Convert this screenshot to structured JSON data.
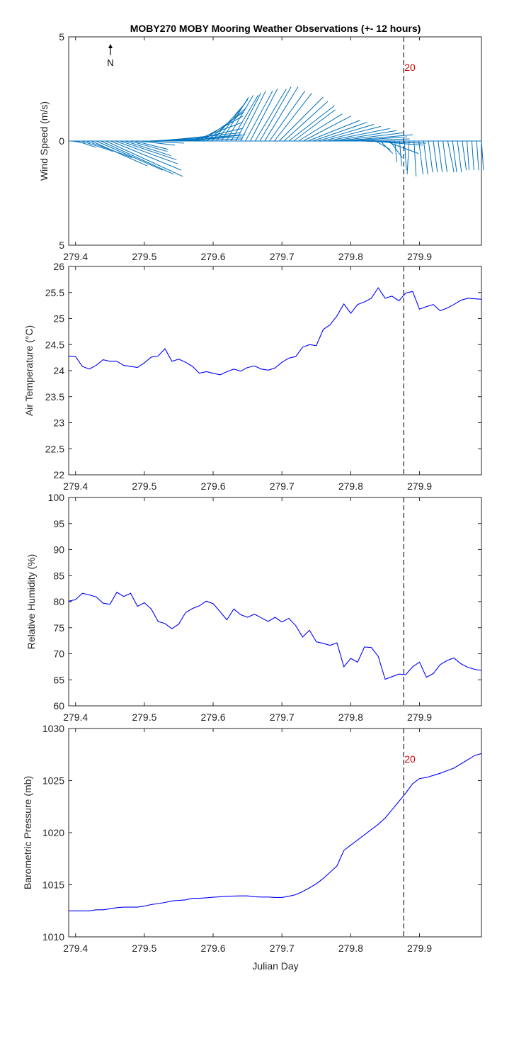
{
  "title": "MOBY270 MOBY Mooring Weather Observations (+- 12 hours)",
  "xlabel": "Julian Day",
  "north_label": "N",
  "marker": {
    "x": 279.877,
    "label": "20"
  },
  "colors": {
    "stick": "#0072bd",
    "line": "#0000ff",
    "marker_label": "#d40000"
  },
  "chart_data": [
    {
      "type": "line",
      "subtype": "wind-stick",
      "ylabel": "Wind Speed (m/s)",
      "xlim": [
        279.39,
        279.99
      ],
      "ylim": [
        -5,
        5
      ],
      "yticks": [
        -5,
        0,
        5
      ],
      "ytick_labels": [
        "5",
        "0",
        "5"
      ],
      "xticks": [
        279.4,
        279.5,
        279.6,
        279.7,
        279.8,
        279.9
      ],
      "show_marker_label": true,
      "series": [
        {
          "x": [
            279.395,
            279.402,
            279.409,
            279.416,
            279.423,
            279.43,
            279.437,
            279.444,
            279.451,
            279.458,
            279.465,
            279.472,
            279.479,
            279.486,
            279.493,
            279.5,
            279.507,
            279.514,
            279.521,
            279.528,
            279.535,
            279.542,
            279.549,
            279.556,
            279.563,
            279.57,
            279.577,
            279.584,
            279.591,
            279.598,
            279.605,
            279.612,
            279.619,
            279.626,
            279.633,
            279.64,
            279.647,
            279.654,
            279.661,
            279.668,
            279.675,
            279.682,
            279.689,
            279.696,
            279.703,
            279.71,
            279.717,
            279.724,
            279.731,
            279.738,
            279.745,
            279.752,
            279.759,
            279.766,
            279.773,
            279.78,
            279.787,
            279.794,
            279.801,
            279.808,
            279.815,
            279.822,
            279.829,
            279.836,
            279.843,
            279.85,
            279.857,
            279.864,
            279.871,
            279.878,
            279.885,
            279.892,
            279.899,
            279.906,
            279.913,
            279.92,
            279.927,
            279.934,
            279.941,
            279.948,
            279.955,
            279.962,
            279.969,
            279.976,
            279.983,
            279.99
          ],
          "u": [
            0.6,
            0.9,
            1.5,
            2.2,
            2.7,
            3.2,
            3.5,
            3.7,
            3.4,
            3.0,
            2.7,
            2.2,
            1.8,
            1.6,
            1.7,
            1.9,
            2.1,
            2.6,
            3.1,
            3.7,
            3.5,
            3.3,
            3.1,
            3.0,
            2.6,
            2.4,
            2.2,
            2.0,
            1.9,
            1.6,
            1.5,
            1.3,
            1.3,
            1.3,
            1.2,
            1.2,
            1.3,
            1.3,
            1.5,
            1.5,
            1.6,
            1.7,
            1.8,
            2.1,
            2.1,
            2.2,
            2.0,
            2.1,
            2.3,
            2.5,
            2.6,
            2.7,
            2.8,
            3.0,
            3.1,
            3.2,
            3.4,
            2.9,
            2.8,
            2.6,
            2.9,
            2.9,
            2.5,
            0.7,
            0.6,
            1.6,
            0.6,
            0.1,
            0.1,
            0.1,
            -0.1,
            0.1,
            0.2,
            0.2,
            0.2,
            0.2,
            0.2,
            0.2,
            0.3,
            0.2,
            0.2,
            0.2,
            0.1,
            0.1,
            0.1,
            0.1
          ],
          "v": [
            -0.1,
            -0.3,
            -0.5,
            -0.8,
            -1.2,
            -1.4,
            -1.6,
            -1.7,
            -1.4,
            -1.1,
            -0.9,
            -0.7,
            -0.5,
            -0.4,
            -0.2,
            -0.1,
            0.1,
            0.2,
            0.3,
            0.4,
            0.3,
            0.2,
            0.1,
            0.3,
            0.6,
            0.9,
            1.2,
            1.4,
            1.6,
            1.8,
            2.0,
            2.1,
            2.2,
            2.2,
            2.3,
            2.4,
            2.4,
            2.5,
            2.5,
            2.6,
            2.6,
            2.4,
            2.3,
            2.1,
            1.9,
            1.7,
            1.5,
            1.3,
            1.2,
            1.0,
            0.9,
            0.8,
            0.7,
            0.6,
            0.5,
            0.4,
            0.3,
            0.2,
            0.1,
            0.0,
            -0.1,
            -0.1,
            -0.2,
            -0.4,
            -0.6,
            -0.6,
            -0.8,
            -1.0,
            -1.2,
            -1.4,
            -1.6,
            -1.7,
            -1.6,
            -1.6,
            -1.5,
            -1.5,
            -1.5,
            -1.5,
            -1.5,
            -1.5,
            -1.5,
            -1.4,
            -1.4,
            -1.4,
            -1.4,
            -1.4
          ]
        }
      ]
    },
    {
      "type": "line",
      "ylabel": "Air Temperature (°C)",
      "xlim": [
        279.39,
        279.99
      ],
      "ylim": [
        22,
        26
      ],
      "yticks": [
        22,
        22.5,
        23,
        23.5,
        24,
        24.5,
        25,
        25.5,
        26
      ],
      "ytick_labels": [
        "22",
        "22.5",
        "23",
        "23.5",
        "24",
        "24.5",
        "25",
        "25.5",
        "26"
      ],
      "xticks": [
        279.4,
        279.5,
        279.6,
        279.7,
        279.8,
        279.9
      ],
      "show_marker_label": false,
      "series": [
        {
          "x": [
            279.39,
            279.4,
            279.41,
            279.42,
            279.43,
            279.44,
            279.45,
            279.46,
            279.47,
            279.48,
            279.49,
            279.5,
            279.51,
            279.52,
            279.53,
            279.54,
            279.55,
            279.56,
            279.57,
            279.58,
            279.59,
            279.6,
            279.61,
            279.62,
            279.63,
            279.64,
            279.65,
            279.66,
            279.67,
            279.68,
            279.69,
            279.7,
            279.71,
            279.72,
            279.73,
            279.74,
            279.75,
            279.76,
            279.77,
            279.78,
            279.79,
            279.8,
            279.81,
            279.82,
            279.83,
            279.84,
            279.85,
            279.86,
            279.87,
            279.88,
            279.89,
            279.9,
            279.91,
            279.92,
            279.93,
            279.94,
            279.95,
            279.96,
            279.97,
            279.98,
            279.99
          ],
          "y": [
            24.28,
            24.27,
            24.08,
            24.03,
            24.1,
            24.21,
            24.18,
            24.18,
            24.1,
            24.08,
            24.06,
            24.15,
            24.26,
            24.28,
            24.42,
            24.18,
            24.22,
            24.16,
            24.08,
            23.95,
            23.98,
            23.95,
            23.92,
            23.98,
            24.03,
            23.99,
            24.06,
            24.09,
            24.03,
            24.01,
            24.05,
            24.16,
            24.24,
            24.27,
            24.45,
            24.5,
            24.48,
            24.79,
            24.88,
            25.05,
            25.28,
            25.1,
            25.27,
            25.32,
            25.39,
            25.59,
            25.39,
            25.43,
            25.34,
            25.49,
            25.52,
            25.18,
            25.23,
            25.27,
            25.15,
            25.2,
            25.27,
            25.35,
            25.39,
            25.38,
            25.37
          ]
        }
      ]
    },
    {
      "type": "line",
      "ylabel": "Relative Humidity (%)",
      "xlim": [
        279.39,
        279.99
      ],
      "ylim": [
        60,
        100
      ],
      "yticks": [
        60,
        65,
        70,
        75,
        80,
        85,
        90,
        95,
        100
      ],
      "ytick_labels": [
        "60",
        "65",
        "70",
        "75",
        "80",
        "85",
        "90",
        "95",
        "100"
      ],
      "xticks": [
        279.4,
        279.5,
        279.6,
        279.7,
        279.8,
        279.9
      ],
      "show_marker_label": false,
      "series": [
        {
          "x": [
            279.39,
            279.4,
            279.41,
            279.42,
            279.43,
            279.44,
            279.45,
            279.46,
            279.47,
            279.48,
            279.49,
            279.5,
            279.51,
            279.52,
            279.53,
            279.54,
            279.55,
            279.56,
            279.57,
            279.58,
            279.59,
            279.6,
            279.61,
            279.62,
            279.63,
            279.64,
            279.65,
            279.66,
            279.67,
            279.68,
            279.69,
            279.7,
            279.71,
            279.72,
            279.73,
            279.74,
            279.75,
            279.76,
            279.77,
            279.78,
            279.79,
            279.8,
            279.81,
            279.82,
            279.83,
            279.84,
            279.85,
            279.86,
            279.87,
            279.88,
            279.89,
            279.9,
            279.91,
            279.92,
            279.93,
            279.94,
            279.95,
            279.96,
            279.97,
            279.98,
            279.99
          ],
          "y": [
            80.1,
            80.4,
            81.6,
            81.3,
            80.9,
            79.7,
            79.5,
            81.8,
            81.0,
            81.6,
            79.1,
            79.8,
            78.6,
            76.2,
            75.8,
            74.8,
            75.7,
            77.9,
            78.7,
            79.2,
            80.1,
            79.6,
            78.1,
            76.5,
            78.6,
            77.5,
            77.0,
            77.6,
            76.9,
            76.2,
            77.0,
            76.1,
            76.8,
            75.4,
            73.2,
            74.5,
            72.3,
            72.0,
            71.6,
            72.1,
            67.5,
            69.1,
            68.4,
            71.3,
            71.2,
            69.5,
            65.1,
            65.6,
            66.1,
            66.0,
            67.5,
            68.4,
            65.5,
            66.2,
            67.9,
            68.7,
            69.2,
            68.1,
            67.4,
            67.0,
            66.8
          ]
        }
      ]
    },
    {
      "type": "line",
      "ylabel": "Barometric Pressure (mb)",
      "xlim": [
        279.39,
        279.99
      ],
      "ylim": [
        1010,
        1030
      ],
      "yticks": [
        1010,
        1015,
        1020,
        1025,
        1030
      ],
      "ytick_labels": [
        "1010",
        "1015",
        "1020",
        "1025",
        "1030"
      ],
      "xticks": [
        279.4,
        279.5,
        279.6,
        279.7,
        279.8,
        279.9
      ],
      "show_marker_label": true,
      "series": [
        {
          "x": [
            279.39,
            279.4,
            279.41,
            279.42,
            279.43,
            279.44,
            279.45,
            279.46,
            279.47,
            279.48,
            279.49,
            279.5,
            279.51,
            279.52,
            279.53,
            279.54,
            279.55,
            279.56,
            279.57,
            279.58,
            279.59,
            279.6,
            279.61,
            279.62,
            279.63,
            279.64,
            279.65,
            279.66,
            279.67,
            279.68,
            279.69,
            279.7,
            279.71,
            279.72,
            279.73,
            279.74,
            279.75,
            279.76,
            279.77,
            279.78,
            279.79,
            279.8,
            279.81,
            279.82,
            279.83,
            279.84,
            279.85,
            279.86,
            279.87,
            279.88,
            279.89,
            279.9,
            279.91,
            279.92,
            279.93,
            279.94,
            279.95,
            279.96,
            279.97,
            279.98,
            279.99
          ],
          "y": [
            1012.5,
            1012.5,
            1012.5,
            1012.5,
            1012.6,
            1012.6,
            1012.7,
            1012.8,
            1012.85,
            1012.85,
            1012.85,
            1012.95,
            1013.1,
            1013.2,
            1013.3,
            1013.45,
            1013.5,
            1013.55,
            1013.7,
            1013.7,
            1013.75,
            1013.8,
            1013.85,
            1013.9,
            1013.92,
            1013.93,
            1013.93,
            1013.85,
            1013.82,
            1013.82,
            1013.78,
            1013.78,
            1013.9,
            1014.05,
            1014.35,
            1014.7,
            1015.1,
            1015.6,
            1016.2,
            1016.8,
            1018.3,
            1018.8,
            1019.3,
            1019.8,
            1020.3,
            1020.8,
            1021.4,
            1022.2,
            1023.0,
            1023.8,
            1024.7,
            1025.2,
            1025.3,
            1025.5,
            1025.7,
            1025.95,
            1026.2,
            1026.6,
            1027.0,
            1027.4,
            1027.6
          ]
        }
      ]
    }
  ]
}
